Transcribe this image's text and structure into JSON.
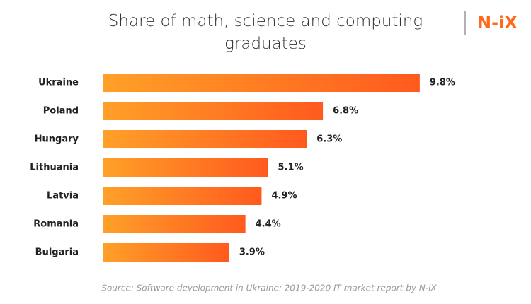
{
  "chart_data": {
    "type": "bar",
    "orientation": "horizontal",
    "title": "Share of math, science and computing graduates",
    "categories": [
      "Ukraine",
      "Poland",
      "Hungary",
      "Lithuania",
      "Latvia",
      "Romania",
      "Bulgaria"
    ],
    "values": [
      9.8,
      6.8,
      6.3,
      5.1,
      4.9,
      4.4,
      3.9
    ],
    "value_labels": [
      "9.8%",
      "6.8%",
      "6.3%",
      "5.1%",
      "4.9%",
      "4.4%",
      "3.9%"
    ],
    "color": [
      "#ffa028",
      "#ff5a1e"
    ],
    "source": "Source: Software development in Ukraine: 2019-2020 IT market report by N-iX",
    "logo": "N-iX"
  }
}
